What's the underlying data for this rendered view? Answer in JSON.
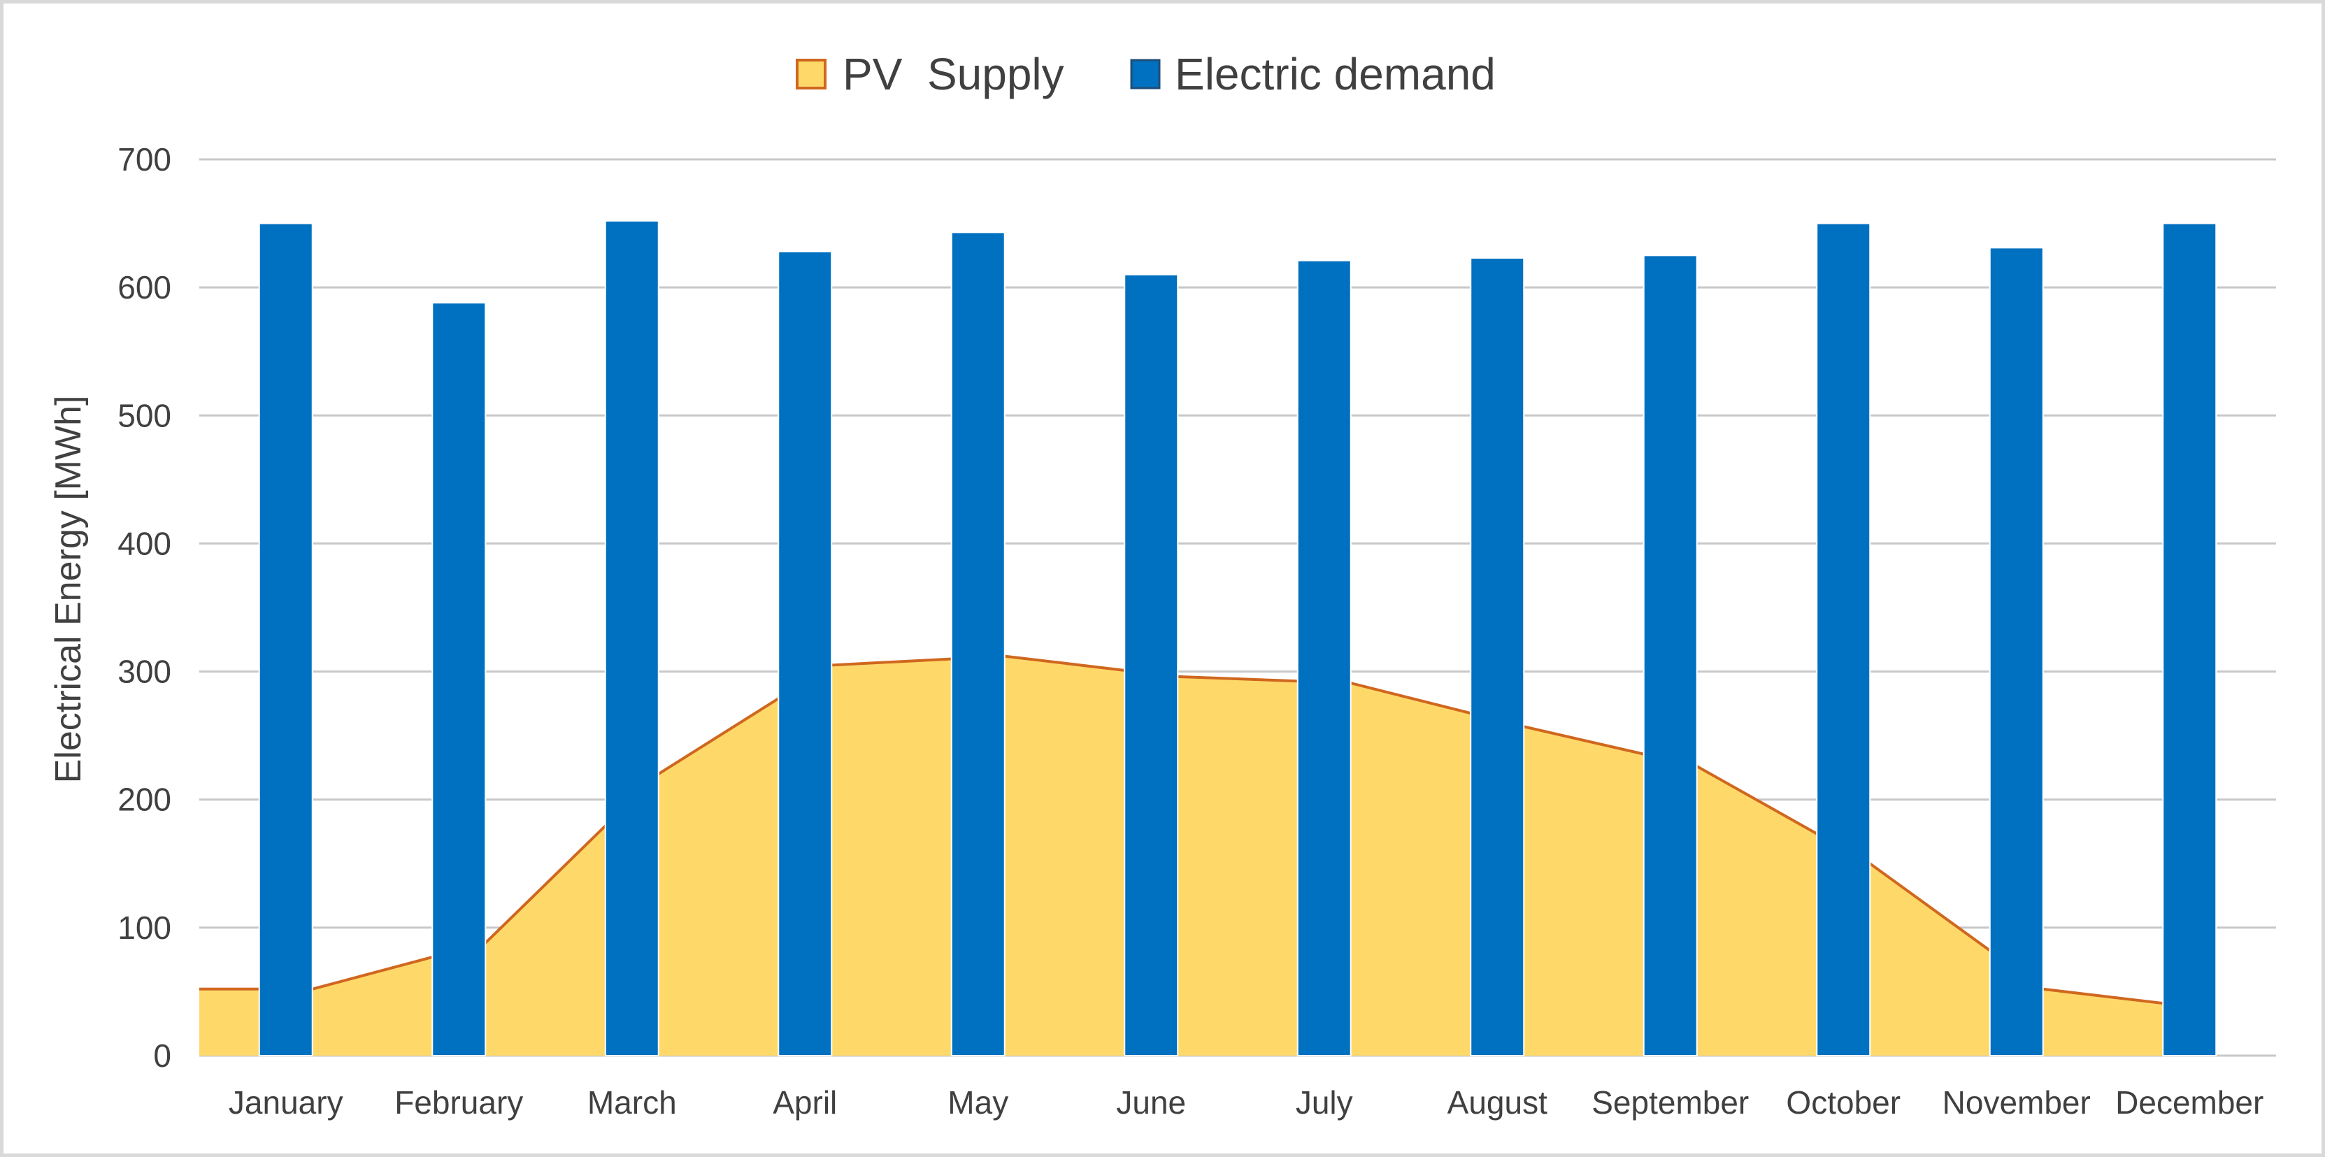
{
  "chart_data": {
    "type": "bar",
    "title": "",
    "xlabel": "",
    "ylabel": "Electrical Energy [MWh]",
    "ylim": [
      0,
      700
    ],
    "yticks": [
      0,
      100,
      200,
      300,
      400,
      500,
      600,
      700
    ],
    "grid": true,
    "legend_position": "top",
    "categories": [
      "January",
      "February",
      "March",
      "April",
      "May",
      "June",
      "July",
      "August",
      "September",
      "October",
      "November",
      "December"
    ],
    "series": [
      {
        "name": "PV  Supply",
        "kind": "area",
        "values": [
          52,
          88,
          220,
          305,
          312,
          296,
          291,
          257,
          226,
          150,
          52,
          36
        ]
      },
      {
        "name": "Electric demand",
        "kind": "bar",
        "values": [
          650,
          588,
          652,
          628,
          643,
          610,
          621,
          623,
          625,
          650,
          631,
          650
        ]
      }
    ]
  },
  "colors": {
    "pv_fill": "#fed96a",
    "pv_line": "#d0671f",
    "demand_bar": "#0070c0",
    "grid": "#c8c8c8",
    "text": "#404040"
  }
}
